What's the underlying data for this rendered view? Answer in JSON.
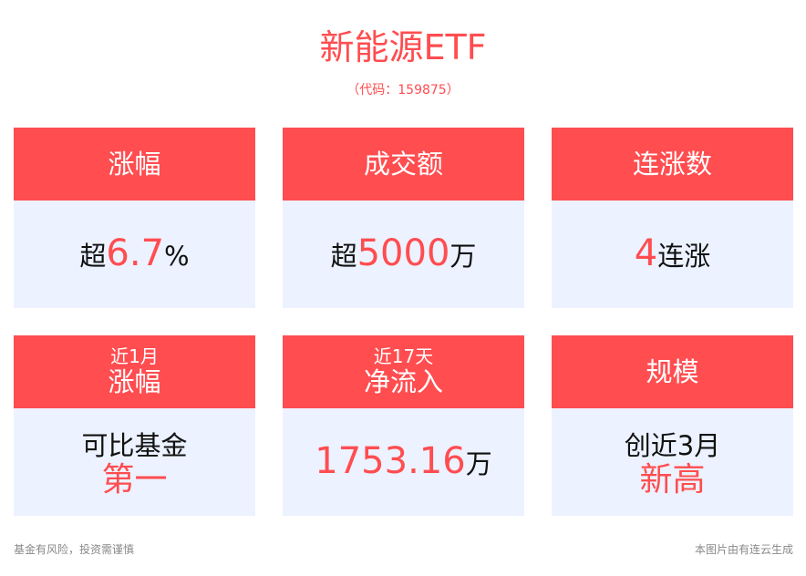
{
  "title": "新能源ETF",
  "code": "（代码：159875）",
  "colors": {
    "accent": "#ff4d50",
    "card_bg": "#ecf2ff"
  },
  "cards": [
    {
      "sub": "",
      "header": "涨幅",
      "line1": {
        "pre": "超",
        "hl": "6.7",
        "post": "%"
      },
      "line2": ""
    },
    {
      "sub": "",
      "header": "成交额",
      "line1": {
        "pre": "超",
        "hl": "5000",
        "post": "万"
      },
      "line2": ""
    },
    {
      "sub": "",
      "header": "连涨数",
      "line1": {
        "pre": "",
        "hl": "4",
        "post": "连涨"
      },
      "line2": ""
    },
    {
      "sub": "近1月",
      "header": "涨幅",
      "line1": {
        "pre": "可比基金",
        "hl": "",
        "post": ""
      },
      "line2": "第一"
    },
    {
      "sub": "近17天",
      "header": "净流入",
      "line1": {
        "pre": "",
        "hl": "1753.16",
        "post": "万"
      },
      "line2": ""
    },
    {
      "sub": "",
      "header": "规模",
      "line1": {
        "pre": "创近3月",
        "hl": "",
        "post": ""
      },
      "line2": "新高"
    }
  ],
  "footer": {
    "left": "基金有风险，投资需谨慎",
    "right": "本图片由有连云生成"
  }
}
